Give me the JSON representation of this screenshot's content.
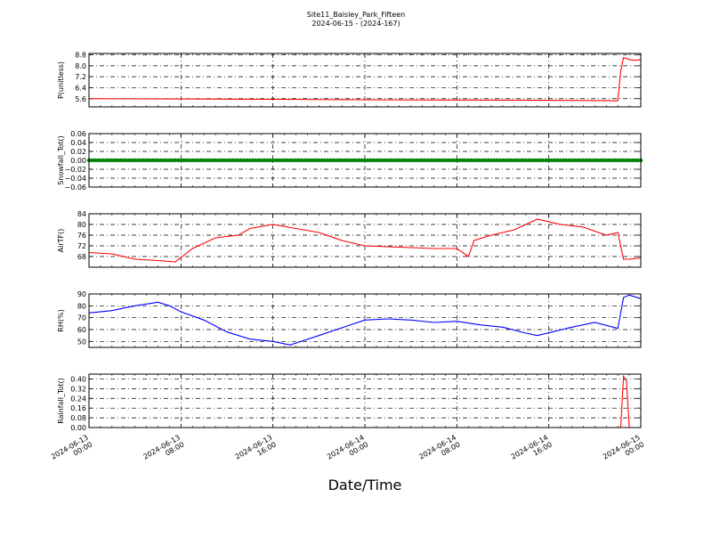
{
  "title": "Site11_Baisley_Park_Fifteen",
  "subtitle": "2024-06-15 - (2024-167)",
  "xlabel": "Date/Time",
  "colors": {
    "red": "#ff0000",
    "green": "#008000",
    "blue": "#0000ff",
    "axis": "#000000"
  },
  "chart_data": [
    {
      "type": "line",
      "ylabel": "P(unitless)",
      "xlim": [
        "2024-06-13 00:00",
        "2024-06-15 00:00"
      ],
      "ylim": [
        5.0,
        8.9
      ],
      "yticks": [
        "5.6",
        "6.4",
        "7.2",
        "8.0",
        "8.8"
      ],
      "grid": true,
      "series": [
        {
          "color": "#ff0000",
          "x": [
            "2024-06-13 00:00",
            "2024-06-13 08:00",
            "2024-06-13 16:00",
            "2024-06-14 00:00",
            "2024-06-14 08:00",
            "2024-06-14 16:00",
            "2024-06-14 22:00",
            "2024-06-14 22:15",
            "2024-06-14 22:30",
            "2024-06-14 23:00",
            "2024-06-14 23:30",
            "2024-06-15 00:00"
          ],
          "y": [
            5.6,
            5.58,
            5.55,
            5.52,
            5.5,
            5.48,
            5.45,
            7.6,
            8.6,
            8.45,
            8.4,
            8.45
          ]
        }
      ]
    },
    {
      "type": "scatter",
      "ylabel": "Snowfall_Tot()",
      "xlim": [
        "2024-06-13 00:00",
        "2024-06-15 00:00"
      ],
      "ylim": [
        -0.06,
        0.06
      ],
      "yticks": [
        "0.06",
        "0.04",
        "0.02",
        "0.00",
        "−0.02",
        "−0.04",
        "−0.06"
      ],
      "grid": true,
      "series": [
        {
          "color": "#008000",
          "x_range": [
            "2024-06-13 00:00",
            "2024-06-15 00:00"
          ],
          "y": 0.0
        }
      ]
    },
    {
      "type": "line",
      "ylabel": "AirTF()",
      "xlim": [
        "2024-06-13 00:00",
        "2024-06-15 00:00"
      ],
      "ylim": [
        64,
        84
      ],
      "yticks": [
        "68",
        "72",
        "76",
        "80",
        "84"
      ],
      "grid": true,
      "series": [
        {
          "color": "#ff0000",
          "x": [
            "2024-06-13 00:00",
            "2024-06-13 02:00",
            "2024-06-13 04:00",
            "2024-06-13 06:00",
            "2024-06-13 07:30",
            "2024-06-13 09:00",
            "2024-06-13 11:00",
            "2024-06-13 13:00",
            "2024-06-13 14:00",
            "2024-06-13 16:00",
            "2024-06-13 18:00",
            "2024-06-13 20:00",
            "2024-06-13 22:00",
            "2024-06-14 00:00",
            "2024-06-14 03:00",
            "2024-06-14 06:00",
            "2024-06-14 08:00",
            "2024-06-14 09:00",
            "2024-06-14 09:30",
            "2024-06-14 11:00",
            "2024-06-14 13:00",
            "2024-06-14 15:00",
            "2024-06-14 17:00",
            "2024-06-14 19:00",
            "2024-06-14 21:00",
            "2024-06-14 22:00",
            "2024-06-14 22:30",
            "2024-06-14 23:00",
            "2024-06-15 00:00"
          ],
          "y": [
            69.5,
            69,
            67,
            66.5,
            66,
            71,
            75,
            76,
            78.5,
            80,
            78.5,
            77,
            74,
            72,
            71.5,
            71,
            71,
            68,
            74,
            76,
            78,
            82,
            80,
            79,
            76,
            77,
            67,
            67,
            67.5
          ]
        }
      ]
    },
    {
      "type": "line",
      "ylabel": "RH(%)",
      "xlim": [
        "2024-06-13 00:00",
        "2024-06-15 00:00"
      ],
      "ylim": [
        45,
        90
      ],
      "yticks": [
        "50",
        "60",
        "70",
        "80",
        "90"
      ],
      "grid": true,
      "series": [
        {
          "color": "#0000ff",
          "x": [
            "2024-06-13 00:00",
            "2024-06-13 02:00",
            "2024-06-13 04:00",
            "2024-06-13 06:00",
            "2024-06-13 07:00",
            "2024-06-13 08:00",
            "2024-06-13 10:00",
            "2024-06-13 12:00",
            "2024-06-13 14:00",
            "2024-06-13 16:00",
            "2024-06-13 17:30",
            "2024-06-13 20:00",
            "2024-06-14 00:00",
            "2024-06-14 02:00",
            "2024-06-14 04:00",
            "2024-06-14 06:00",
            "2024-06-14 08:00",
            "2024-06-14 10:00",
            "2024-06-14 12:00",
            "2024-06-14 14:00",
            "2024-06-14 15:00",
            "2024-06-14 18:00",
            "2024-06-14 20:00",
            "2024-06-14 22:00",
            "2024-06-14 22:30",
            "2024-06-14 23:00",
            "2024-06-15 00:00"
          ],
          "y": [
            74,
            76,
            80,
            83,
            80,
            75,
            68,
            58,
            52,
            50,
            47,
            55,
            68,
            69,
            68,
            66,
            67,
            64,
            62,
            57,
            55,
            62,
            66,
            61,
            87,
            89,
            86
          ]
        }
      ]
    },
    {
      "type": "line",
      "ylabel": "Rainfall_Tot()",
      "xlim": [
        "2024-06-13 00:00",
        "2024-06-15 00:00"
      ],
      "ylim": [
        0.0,
        0.44
      ],
      "yticks": [
        "0.00",
        "0.08",
        "0.16",
        "0.24",
        "0.32",
        "0.40"
      ],
      "grid": true,
      "series": [
        {
          "color": "#ff0000",
          "x": [
            "2024-06-13 00:00",
            "2024-06-14 22:15",
            "2024-06-14 22:30",
            "2024-06-14 22:45",
            "2024-06-14 23:00",
            "2024-06-15 00:00"
          ],
          "y": [
            0.0,
            0.0,
            0.42,
            0.38,
            0.0,
            0.0
          ]
        }
      ]
    }
  ],
  "xticks": [
    [
      "2024-06-13",
      "00:00"
    ],
    [
      "2024-06-13",
      "08:00"
    ],
    [
      "2024-06-13",
      "16:00"
    ],
    [
      "2024-06-14",
      "00:00"
    ],
    [
      "2024-06-14",
      "08:00"
    ],
    [
      "2024-06-14",
      "16:00"
    ],
    [
      "2024-06-15",
      "00:00"
    ]
  ]
}
